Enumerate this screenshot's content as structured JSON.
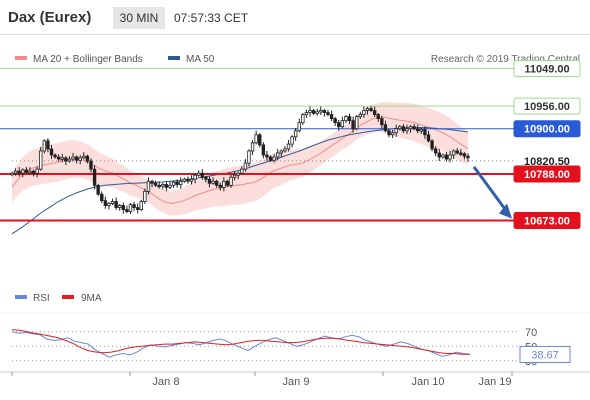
{
  "header": {
    "title": "Dax (Eurex)",
    "timeframe": "30 MIN",
    "time": "07:57:33 CET"
  },
  "legend": {
    "items": [
      {
        "label": "MA 20 + Bollinger Bands",
        "color": "#f28c8c"
      },
      {
        "label": "MA 50",
        "color": "#2e5b9a"
      }
    ],
    "source": "Research © 2019 Trading Central"
  },
  "rsi_legend": {
    "items": [
      {
        "label": "RSI",
        "color": "#6b86d9"
      },
      {
        "label": "9MA",
        "color": "#e02020"
      }
    ]
  },
  "chart_data": [
    {
      "type": "candlestick",
      "price_range": [
        10600,
        11070
      ],
      "x_labels": [
        "Jan 8",
        "Jan 9",
        "Jan 10",
        "Jan 19"
      ],
      "levels": [
        {
          "value": 11049.0,
          "label": "11049.00",
          "role": "resistance",
          "color": "#a6d88a"
        },
        {
          "value": 10956.0,
          "label": "10956.00",
          "role": "resistance",
          "color": "#a6d88a"
        },
        {
          "value": 10900.0,
          "label": "10900.00",
          "role": "pivot",
          "color": "#2a5bd7"
        },
        {
          "value": 10820.5,
          "label": "10820.50",
          "role": "last",
          "color": "#222222"
        },
        {
          "value": 10788.0,
          "label": "10788.00",
          "role": "support",
          "color": "#e3101e"
        },
        {
          "value": 10673.0,
          "label": "10673.00",
          "role": "support",
          "color": "#e3101e"
        }
      ],
      "closes": [
        10790,
        10795,
        10790,
        10798,
        10792,
        10795,
        10790,
        10800,
        10845,
        10870,
        10850,
        10835,
        10830,
        10825,
        10828,
        10820,
        10825,
        10830,
        10822,
        10828,
        10832,
        10820,
        10800,
        10760,
        10738,
        10722,
        10710,
        10715,
        10720,
        10705,
        10710,
        10700,
        10695,
        10712,
        10705,
        10700,
        10720,
        10745,
        10770,
        10765,
        10760,
        10758,
        10762,
        10755,
        10760,
        10768,
        10762,
        10770,
        10775,
        10770,
        10775,
        10785,
        10790,
        10780,
        10775,
        10765,
        10770,
        10760,
        10755,
        10770,
        10760,
        10780,
        10785,
        10790,
        10800,
        10815,
        10845,
        10865,
        10885,
        10860,
        10835,
        10830,
        10822,
        10830,
        10840,
        10845,
        10850,
        10862,
        10880,
        10895,
        10915,
        10935,
        10940,
        10945,
        10938,
        10942,
        10945,
        10940,
        10935,
        10925,
        10915,
        10905,
        10920,
        10930,
        10920,
        10900,
        10930,
        10935,
        10945,
        10950,
        10945,
        10935,
        10925,
        10910,
        10895,
        10885,
        10890,
        10900,
        10905,
        10895,
        10900,
        10905,
        10900,
        10895,
        10898,
        10885,
        10870,
        10850,
        10840,
        10830,
        10835,
        10825,
        10835,
        10845,
        10840,
        10838,
        10832,
        10828
      ],
      "ma20": [
        10755,
        10775,
        10790,
        10800,
        10805,
        10810,
        10812,
        10815,
        10818,
        10822,
        10825,
        10825,
        10822,
        10815,
        10808,
        10800,
        10795,
        10790,
        10782,
        10775,
        10765,
        10760,
        10752,
        10745,
        10735,
        10725,
        10718,
        10715,
        10718,
        10722,
        10728,
        10735,
        10740,
        10745,
        10750,
        10752,
        10755,
        10758,
        10760,
        10762,
        10765,
        10768,
        10775,
        10785,
        10795,
        10800,
        10805,
        10810,
        10812,
        10815,
        10822,
        10830,
        10838,
        10848,
        10858,
        10868,
        10878,
        10888,
        10900,
        10910,
        10918,
        10925,
        10928,
        10928,
        10925,
        10922,
        10920,
        10918,
        10915,
        10910,
        10905,
        10900,
        10895,
        10888,
        10880,
        10870,
        10860,
        10850
      ],
      "ma50": [
        10640,
        10655,
        10672,
        10690,
        10705,
        10720,
        10732,
        10742,
        10750,
        10756,
        10760,
        10762,
        10764,
        10765,
        10766,
        10767,
        10768,
        10770,
        10772,
        10775,
        10778,
        10782,
        10786,
        10790,
        10795,
        10800,
        10808,
        10815,
        10822,
        10830,
        10838,
        10846,
        10855,
        10864,
        10872,
        10878,
        10884,
        10888,
        10892,
        10895,
        10898,
        10900,
        10902,
        10903,
        10903,
        10902,
        10900,
        10898,
        10895,
        10892
      ]
    },
    {
      "type": "line",
      "name": "RSI",
      "levels": [
        70,
        50,
        30
      ],
      "last_value": "38.67",
      "values": [
        70,
        68,
        69,
        67,
        66,
        60,
        58,
        59,
        62,
        57,
        55,
        53,
        45,
        40,
        35,
        38,
        40,
        38,
        42,
        48,
        52,
        50,
        49,
        51,
        53,
        55,
        54,
        52,
        55,
        58,
        60,
        57,
        52,
        48,
        44,
        50,
        55,
        59,
        62,
        58,
        54,
        50,
        52,
        56,
        60,
        64,
        62,
        60,
        63,
        65,
        63,
        58,
        55,
        52,
        50,
        53,
        56,
        54,
        50,
        46,
        44,
        40,
        36,
        38,
        42,
        40,
        39
      ],
      "ma9": [
        73,
        72,
        70,
        68,
        66,
        64,
        62,
        58,
        54,
        48,
        44,
        42,
        41,
        42,
        44,
        47,
        49,
        50,
        51,
        52,
        53,
        53,
        54,
        55,
        56,
        55,
        54,
        53,
        52,
        53,
        55,
        57,
        58,
        58,
        57,
        56,
        55,
        55,
        56,
        58,
        60,
        61,
        61,
        60,
        58,
        57,
        55,
        54,
        53,
        52,
        51,
        50,
        49,
        47,
        45,
        43,
        41,
        40,
        40,
        39,
        39
      ]
    }
  ]
}
